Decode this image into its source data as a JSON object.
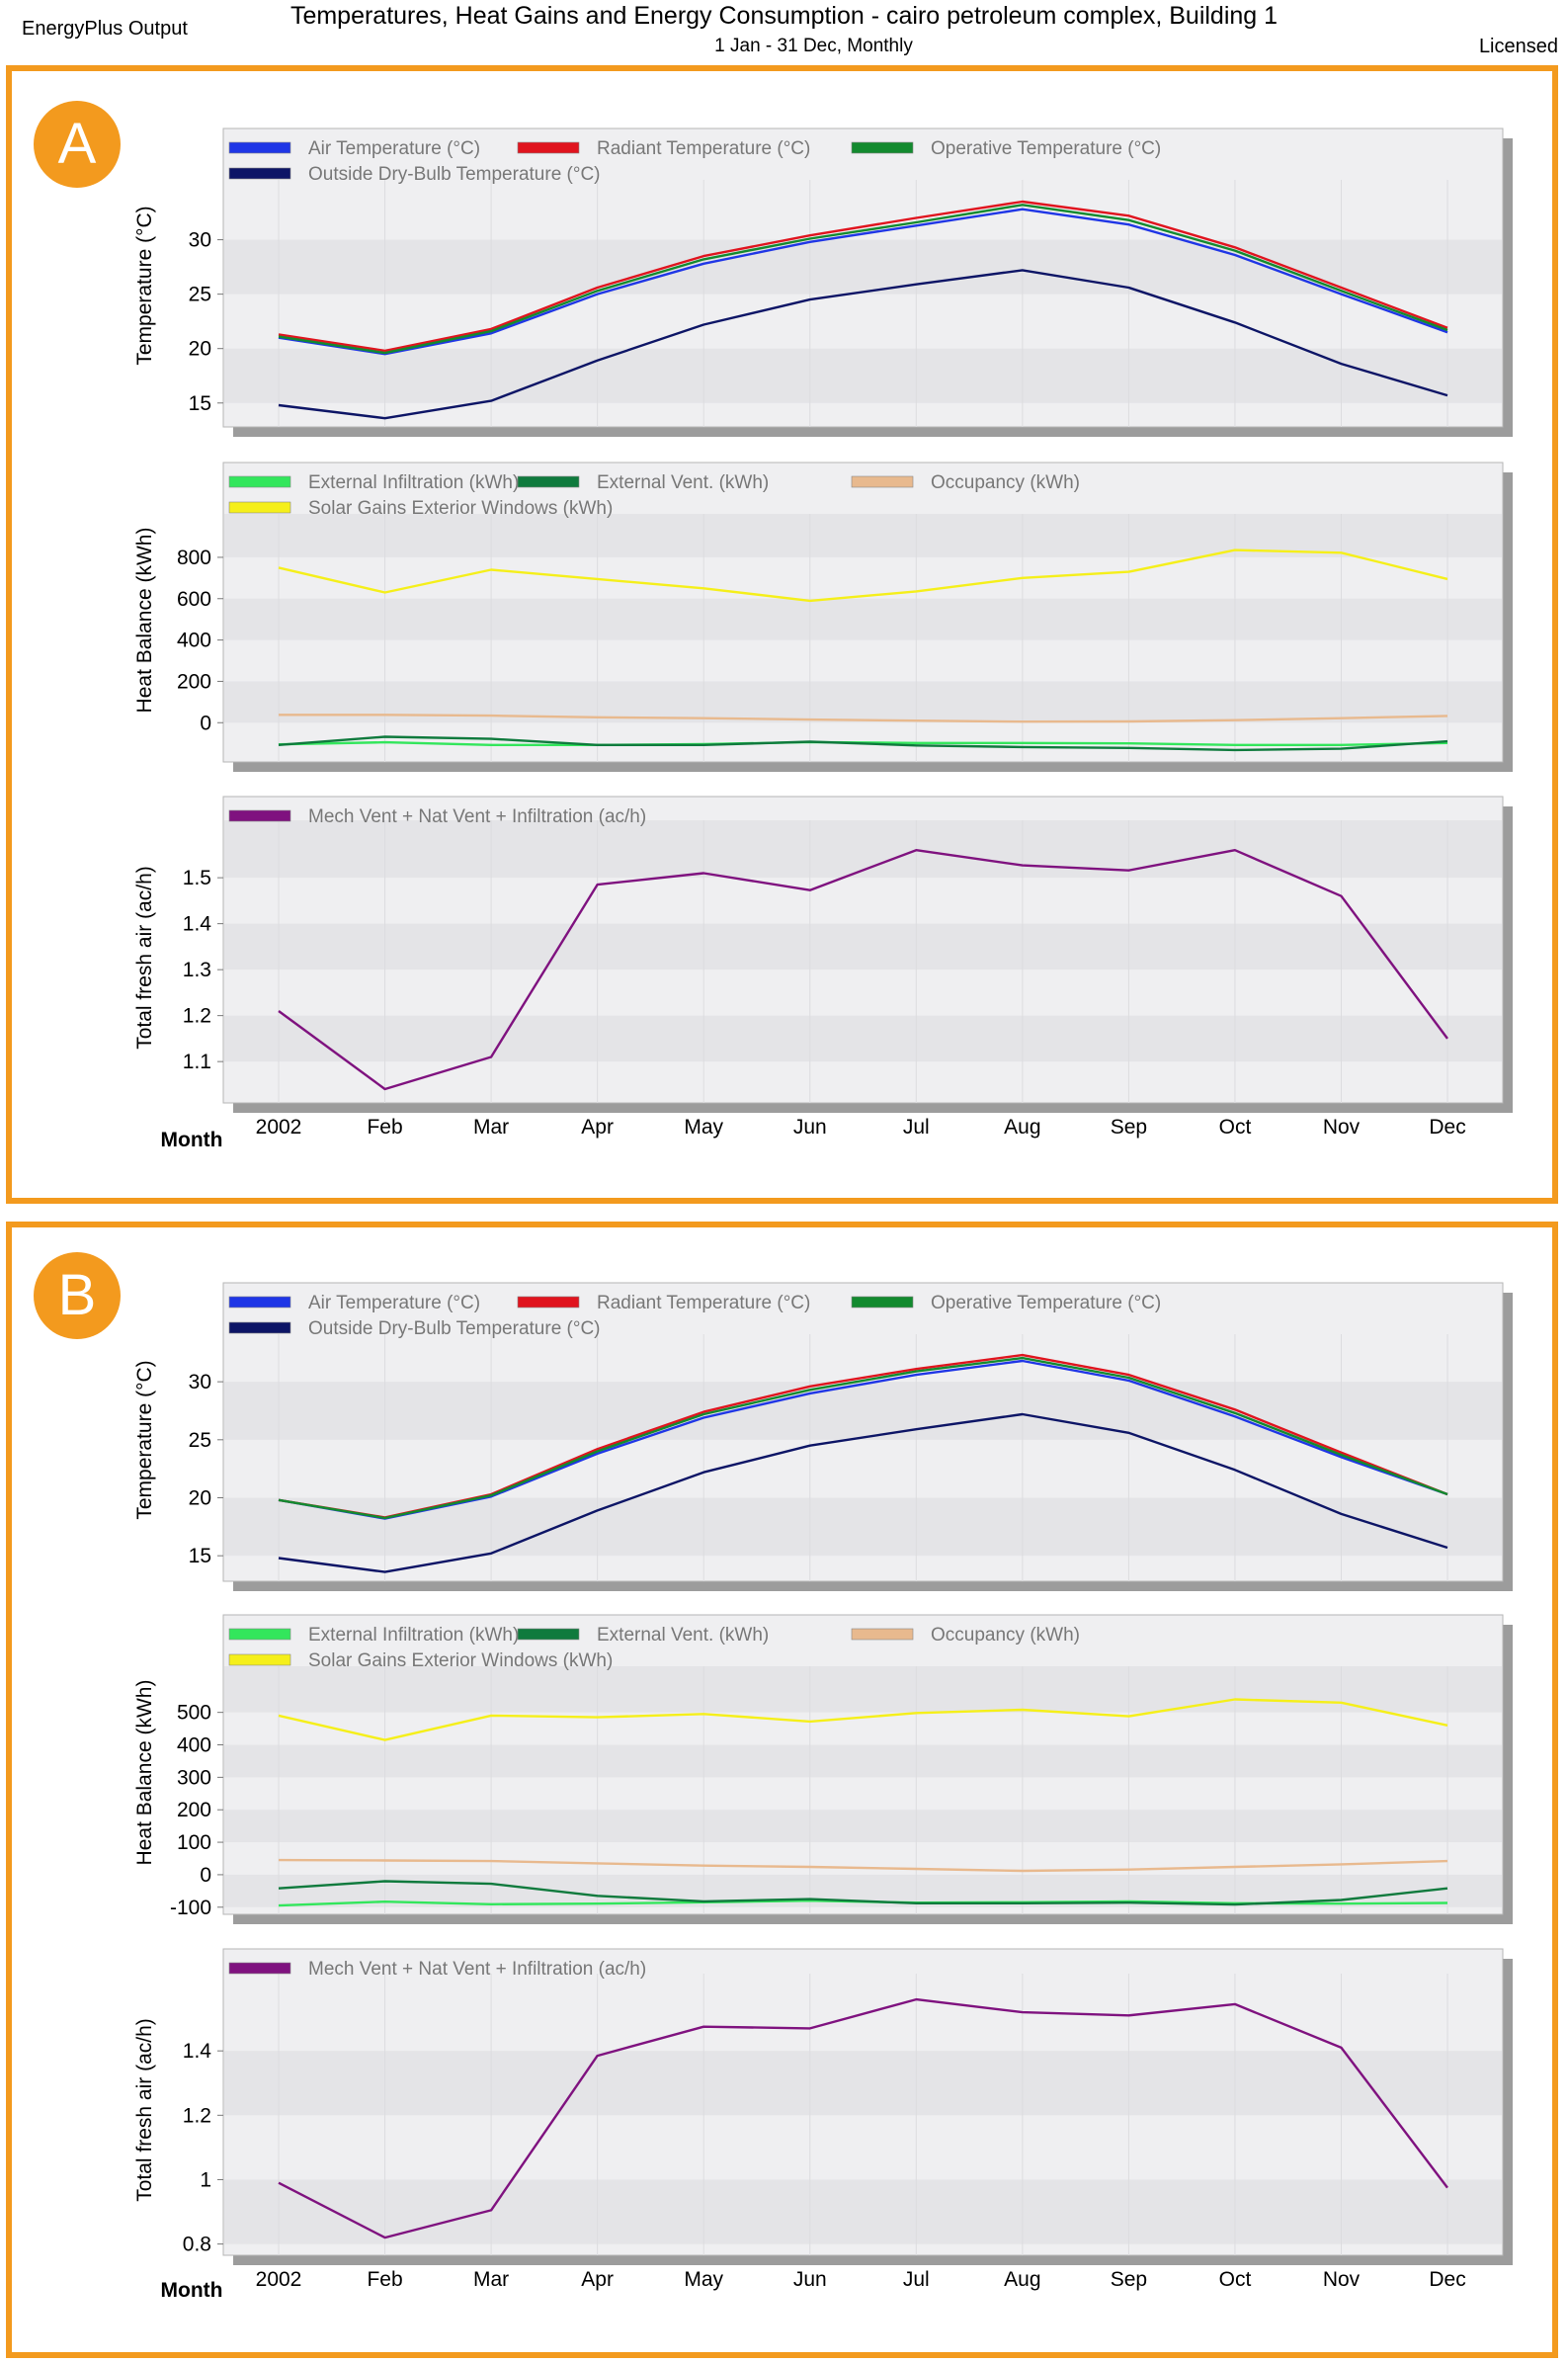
{
  "header": {
    "left": "EnergyPlus Output",
    "title": "Temperatures, Heat Gains and Energy Consumption - cairo petroleum complex, Building 1",
    "subtitle": "1 Jan - 31 Dec, Monthly",
    "right": "Licensed"
  },
  "colors": {
    "accent": "#f39a1e",
    "plot_bg": "#efeff1",
    "band": "#e6e6e9"
  },
  "chart_data": [
    {
      "panel": "A",
      "type": "line",
      "title": "Temperature",
      "ylabel": "Temperature (°C)",
      "categories": [
        "2002",
        "Feb",
        "Mar",
        "Apr",
        "May",
        "Jun",
        "Jul",
        "Aug",
        "Sep",
        "Oct",
        "Nov",
        "Dec"
      ],
      "ylim": [
        12.8,
        35.5
      ],
      "yticks": [
        15,
        20,
        25,
        30
      ],
      "series": [
        {
          "name": "Air Temperature (°C)",
          "color": "#1f36e6",
          "values": [
            21.0,
            19.5,
            21.4,
            25.0,
            27.8,
            29.8,
            31.3,
            32.8,
            31.4,
            28.6,
            25.0,
            21.5
          ]
        },
        {
          "name": "Radiant Temperature (°C)",
          "color": "#e0141e",
          "values": [
            21.3,
            19.8,
            21.8,
            25.6,
            28.5,
            30.4,
            32.0,
            33.5,
            32.2,
            29.3,
            25.6,
            21.9
          ]
        },
        {
          "name": "Operative Temperature (°C)",
          "color": "#138a2f",
          "values": [
            21.1,
            19.6,
            21.6,
            25.3,
            28.2,
            30.1,
            31.6,
            33.2,
            31.8,
            29.0,
            25.3,
            21.7
          ]
        },
        {
          "name": "Outside Dry-Bulb Temperature (°C)",
          "color": "#0d1566",
          "values": [
            14.8,
            13.6,
            15.2,
            18.9,
            22.2,
            24.5,
            25.9,
            27.2,
            25.6,
            22.4,
            18.6,
            15.7
          ]
        }
      ]
    },
    {
      "panel": "A",
      "type": "line",
      "title": "Heat Balance",
      "ylabel": "Heat Balance (kWh)",
      "categories": [
        "2002",
        "Feb",
        "Mar",
        "Apr",
        "May",
        "Jun",
        "Jul",
        "Aug",
        "Sep",
        "Oct",
        "Nov",
        "Dec"
      ],
      "ylim": [
        -190,
        1010
      ],
      "yticks": [
        0,
        200,
        400,
        600,
        800
      ],
      "series": [
        {
          "name": "External Infiltration (kWh)",
          "color": "#33e65c",
          "values": [
            -105,
            -95,
            -108,
            -108,
            -104,
            -94,
            -98,
            -98,
            -100,
            -108,
            -108,
            -98
          ]
        },
        {
          "name": "External Vent. (kWh)",
          "color": "#0f7a3d",
          "values": [
            -108,
            -68,
            -78,
            -108,
            -108,
            -92,
            -110,
            -118,
            -122,
            -132,
            -126,
            -90
          ]
        },
        {
          "name": "Occupancy (kWh)",
          "color": "#e8b98e",
          "values": [
            38,
            38,
            34,
            26,
            22,
            15,
            10,
            5,
            6,
            12,
            22,
            33
          ]
        },
        {
          "name": "Solar Gains Exterior Windows (kWh)",
          "color": "#f5ef1a",
          "values": [
            750,
            630,
            740,
            695,
            650,
            590,
            635,
            700,
            730,
            835,
            822,
            695
          ]
        }
      ]
    },
    {
      "panel": "A",
      "type": "line",
      "title": "Fresh Air",
      "ylabel": "Total fresh air (ac/h)",
      "xlabel": "Month",
      "categories": [
        "2002",
        "Feb",
        "Mar",
        "Apr",
        "May",
        "Jun",
        "Jul",
        "Aug",
        "Sep",
        "Oct",
        "Nov",
        "Dec"
      ],
      "ylim": [
        1.01,
        1.625
      ],
      "yticks": [
        1.1,
        1.2,
        1.3,
        1.4,
        1.5
      ],
      "series": [
        {
          "name": "Mech Vent + Nat Vent + Infiltration (ac/h)",
          "color": "#7f127f",
          "values": [
            1.21,
            1.04,
            1.11,
            1.485,
            1.51,
            1.473,
            1.56,
            1.527,
            1.516,
            1.56,
            1.46,
            1.15
          ]
        }
      ]
    },
    {
      "panel": "B",
      "type": "line",
      "title": "Temperature",
      "ylabel": "Temperature (°C)",
      "categories": [
        "2002",
        "Feb",
        "Mar",
        "Apr",
        "May",
        "Jun",
        "Jul",
        "Aug",
        "Sep",
        "Oct",
        "Nov",
        "Dec"
      ],
      "ylim": [
        12.8,
        34.1
      ],
      "yticks": [
        15,
        20,
        25,
        30
      ],
      "series": [
        {
          "name": "Air Temperature (°C)",
          "color": "#1f36e6",
          "values": [
            19.8,
            18.2,
            20.1,
            23.8,
            26.9,
            29.0,
            30.6,
            31.8,
            30.1,
            27.0,
            23.5,
            20.3
          ]
        },
        {
          "name": "Radiant Temperature (°C)",
          "color": "#e0141e",
          "values": [
            19.8,
            18.3,
            20.3,
            24.2,
            27.4,
            29.6,
            31.1,
            32.3,
            30.6,
            27.6,
            23.9,
            20.3
          ]
        },
        {
          "name": "Operative Temperature (°C)",
          "color": "#138a2f",
          "values": [
            19.8,
            18.25,
            20.2,
            24.0,
            27.2,
            29.3,
            30.9,
            32.05,
            30.35,
            27.3,
            23.7,
            20.3
          ]
        },
        {
          "name": "Outside Dry-Bulb Temperature (°C)",
          "color": "#0d1566",
          "values": [
            14.8,
            13.6,
            15.2,
            18.9,
            22.2,
            24.5,
            25.9,
            27.2,
            25.6,
            22.4,
            18.6,
            15.7
          ]
        }
      ]
    },
    {
      "panel": "B",
      "type": "line",
      "title": "Heat Balance",
      "ylabel": "Heat Balance (kWh)",
      "categories": [
        "2002",
        "Feb",
        "Mar",
        "Apr",
        "May",
        "Jun",
        "Jul",
        "Aug",
        "Sep",
        "Oct",
        "Nov",
        "Dec"
      ],
      "ylim": [
        -122,
        642
      ],
      "yticks": [
        -100,
        0,
        100,
        200,
        300,
        400,
        500
      ],
      "series": [
        {
          "name": "External Infiltration (kWh)",
          "color": "#33e65c",
          "values": [
            -95,
            -83,
            -91,
            -89,
            -85,
            -80,
            -86,
            -85,
            -82,
            -88,
            -89,
            -87
          ]
        },
        {
          "name": "External Vent. (kWh)",
          "color": "#0f7a3d",
          "values": [
            -42,
            -20,
            -28,
            -65,
            -82,
            -75,
            -88,
            -88,
            -86,
            -92,
            -78,
            -42
          ]
        },
        {
          "name": "Occupancy (kWh)",
          "color": "#e8b98e",
          "values": [
            45,
            44,
            42,
            35,
            28,
            24,
            18,
            12,
            16,
            24,
            32,
            42
          ]
        },
        {
          "name": "Solar Gains Exterior Windows (kWh)",
          "color": "#f5ef1a",
          "values": [
            490,
            415,
            490,
            485,
            495,
            472,
            498,
            508,
            488,
            540,
            530,
            460
          ]
        }
      ]
    },
    {
      "panel": "B",
      "type": "line",
      "title": "Fresh Air",
      "ylabel": "Total fresh air (ac/h)",
      "xlabel": "Month",
      "categories": [
        "2002",
        "Feb",
        "Mar",
        "Apr",
        "May",
        "Jun",
        "Jul",
        "Aug",
        "Sep",
        "Oct",
        "Nov",
        "Dec"
      ],
      "ylim": [
        0.765,
        1.64
      ],
      "yticks": [
        0.8,
        1.0,
        1.2,
        1.4
      ],
      "series": [
        {
          "name": "Mech Vent + Nat Vent + Infiltration (ac/h)",
          "color": "#7f127f",
          "values": [
            0.99,
            0.82,
            0.905,
            1.385,
            1.475,
            1.47,
            1.56,
            1.52,
            1.51,
            1.545,
            1.41,
            0.975
          ]
        }
      ]
    }
  ],
  "panels": [
    {
      "label": "A"
    },
    {
      "label": "B"
    }
  ]
}
